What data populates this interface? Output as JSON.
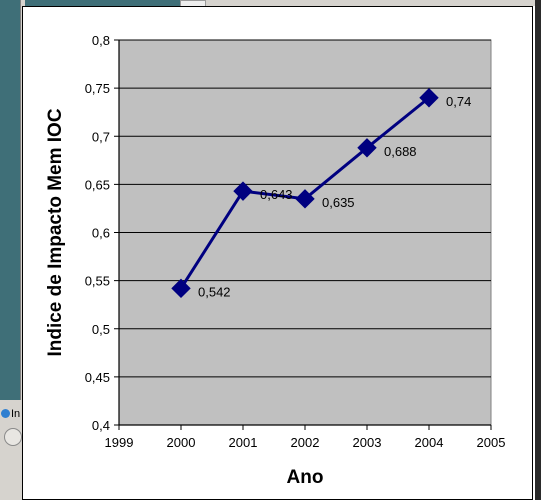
{
  "chart_data": {
    "type": "line",
    "title": "",
    "xlabel": "Ano",
    "ylabel": "Indice de Impacto Mem IOC",
    "x": [
      2000,
      2001,
      2002,
      2003,
      2004
    ],
    "series": [
      {
        "values": [
          0.542,
          0.643,
          0.635,
          0.688,
          0.74
        ],
        "labels": [
          "0,542",
          "0,643",
          "0,635",
          "0,688",
          "0,74"
        ]
      }
    ],
    "xlim": [
      1999,
      2005
    ],
    "ylim": [
      0.4,
      0.8
    ],
    "x_ticks": [
      "1999",
      "2000",
      "2001",
      "2002",
      "2003",
      "2004",
      "2005"
    ],
    "y_ticks": [
      "0,4",
      "0,45",
      "0,5",
      "0,55",
      "0,6",
      "0,65",
      "0,7",
      "0,75",
      "0,8"
    ],
    "grid": true,
    "legend": "none",
    "colors": {
      "series": "#000080",
      "plot_background": "#c0c0c0",
      "gridline": "#000000"
    }
  },
  "background": {
    "taskbar_item_text": "In"
  }
}
